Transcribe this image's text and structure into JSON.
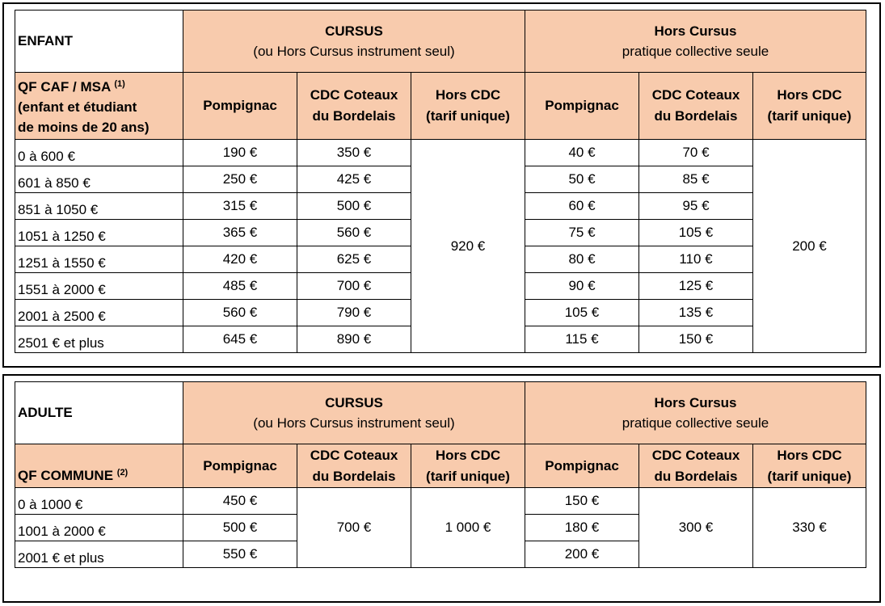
{
  "enfant": {
    "section_label": "ENFANT",
    "group_cursus_line1": "CURSUS",
    "group_cursus_line2": "(ou Hors Cursus instrument seul)",
    "group_hors_line1": "Hors Cursus",
    "group_hors_line2": "pratique collective seule",
    "qf_label_line1": "QF CAF / MSA",
    "qf_label_note": "(1)",
    "qf_label_line2": "(enfant et étudiant",
    "qf_label_line3": "de moins de 20 ans)",
    "columns": {
      "pompignac": "Pompignac",
      "cdc_line1": "CDC Coteaux",
      "cdc_line2": "du Bordelais",
      "hors_line1": "Hors CDC",
      "hors_line2": "(tarif unique)"
    },
    "rows": [
      {
        "qf": "0 à 600 €",
        "cursus_pompignac": "190 €",
        "cursus_cdc": "350 €",
        "hc_pompignac": "40 €",
        "hc_cdc": "70 €"
      },
      {
        "qf": "601 à 850 €",
        "cursus_pompignac": "250 €",
        "cursus_cdc": "425 €",
        "hc_pompignac": "50 €",
        "hc_cdc": "85 €"
      },
      {
        "qf": "851 à 1050 €",
        "cursus_pompignac": "315 €",
        "cursus_cdc": "500 €",
        "hc_pompignac": "60 €",
        "hc_cdc": "95 €"
      },
      {
        "qf": "1051 à 1250 €",
        "cursus_pompignac": "365 €",
        "cursus_cdc": "560 €",
        "hc_pompignac": "75 €",
        "hc_cdc": "105 €"
      },
      {
        "qf": "1251 à 1550 €",
        "cursus_pompignac": "420 €",
        "cursus_cdc": "625 €",
        "hc_pompignac": "80 €",
        "hc_cdc": "110 €"
      },
      {
        "qf": "1551 à 2000 €",
        "cursus_pompignac": "485 €",
        "cursus_cdc": "700 €",
        "hc_pompignac": "90 €",
        "hc_cdc": "125 €"
      },
      {
        "qf": "2001 à 2500 €",
        "cursus_pompignac": "560 €",
        "cursus_cdc": "790 €",
        "hc_pompignac": "105 €",
        "hc_cdc": "135 €"
      },
      {
        "qf": "2501 € et plus",
        "cursus_pompignac": "645 €",
        "cursus_cdc": "890 €",
        "hc_pompignac": "115 €",
        "hc_cdc": "150 €"
      }
    ],
    "cursus_hors_cdc": "920 €",
    "hc_hors_cdc": "200 €"
  },
  "adulte": {
    "section_label": "ADULTE",
    "group_cursus_line1": "CURSUS",
    "group_cursus_line2": "(ou Hors Cursus instrument seul)",
    "group_hors_line1": "Hors Cursus",
    "group_hors_line2": "pratique collective seule",
    "qf_label": "QF COMMUNE",
    "qf_label_note": "(2)",
    "columns": {
      "pompignac": "Pompignac",
      "cdc_line1": "CDC Coteaux",
      "cdc_line2": "du Bordelais",
      "hors_line1": "Hors CDC",
      "hors_line2": "(tarif unique)"
    },
    "rows": [
      {
        "qf": "0 à 1000 €",
        "cursus_pompignac": "450 €",
        "hc_pompignac": "150 €"
      },
      {
        "qf": "1001 à 2000 €",
        "cursus_pompignac": "500 €",
        "hc_pompignac": "180 €"
      },
      {
        "qf": "2001 € et plus",
        "cursus_pompignac": "550 €",
        "hc_pompignac": "200 €"
      }
    ],
    "cursus_cdc": "700 €",
    "cursus_hors_cdc": "1 000 €",
    "hc_cdc": "300 €",
    "hc_hors_cdc": "330 €"
  }
}
